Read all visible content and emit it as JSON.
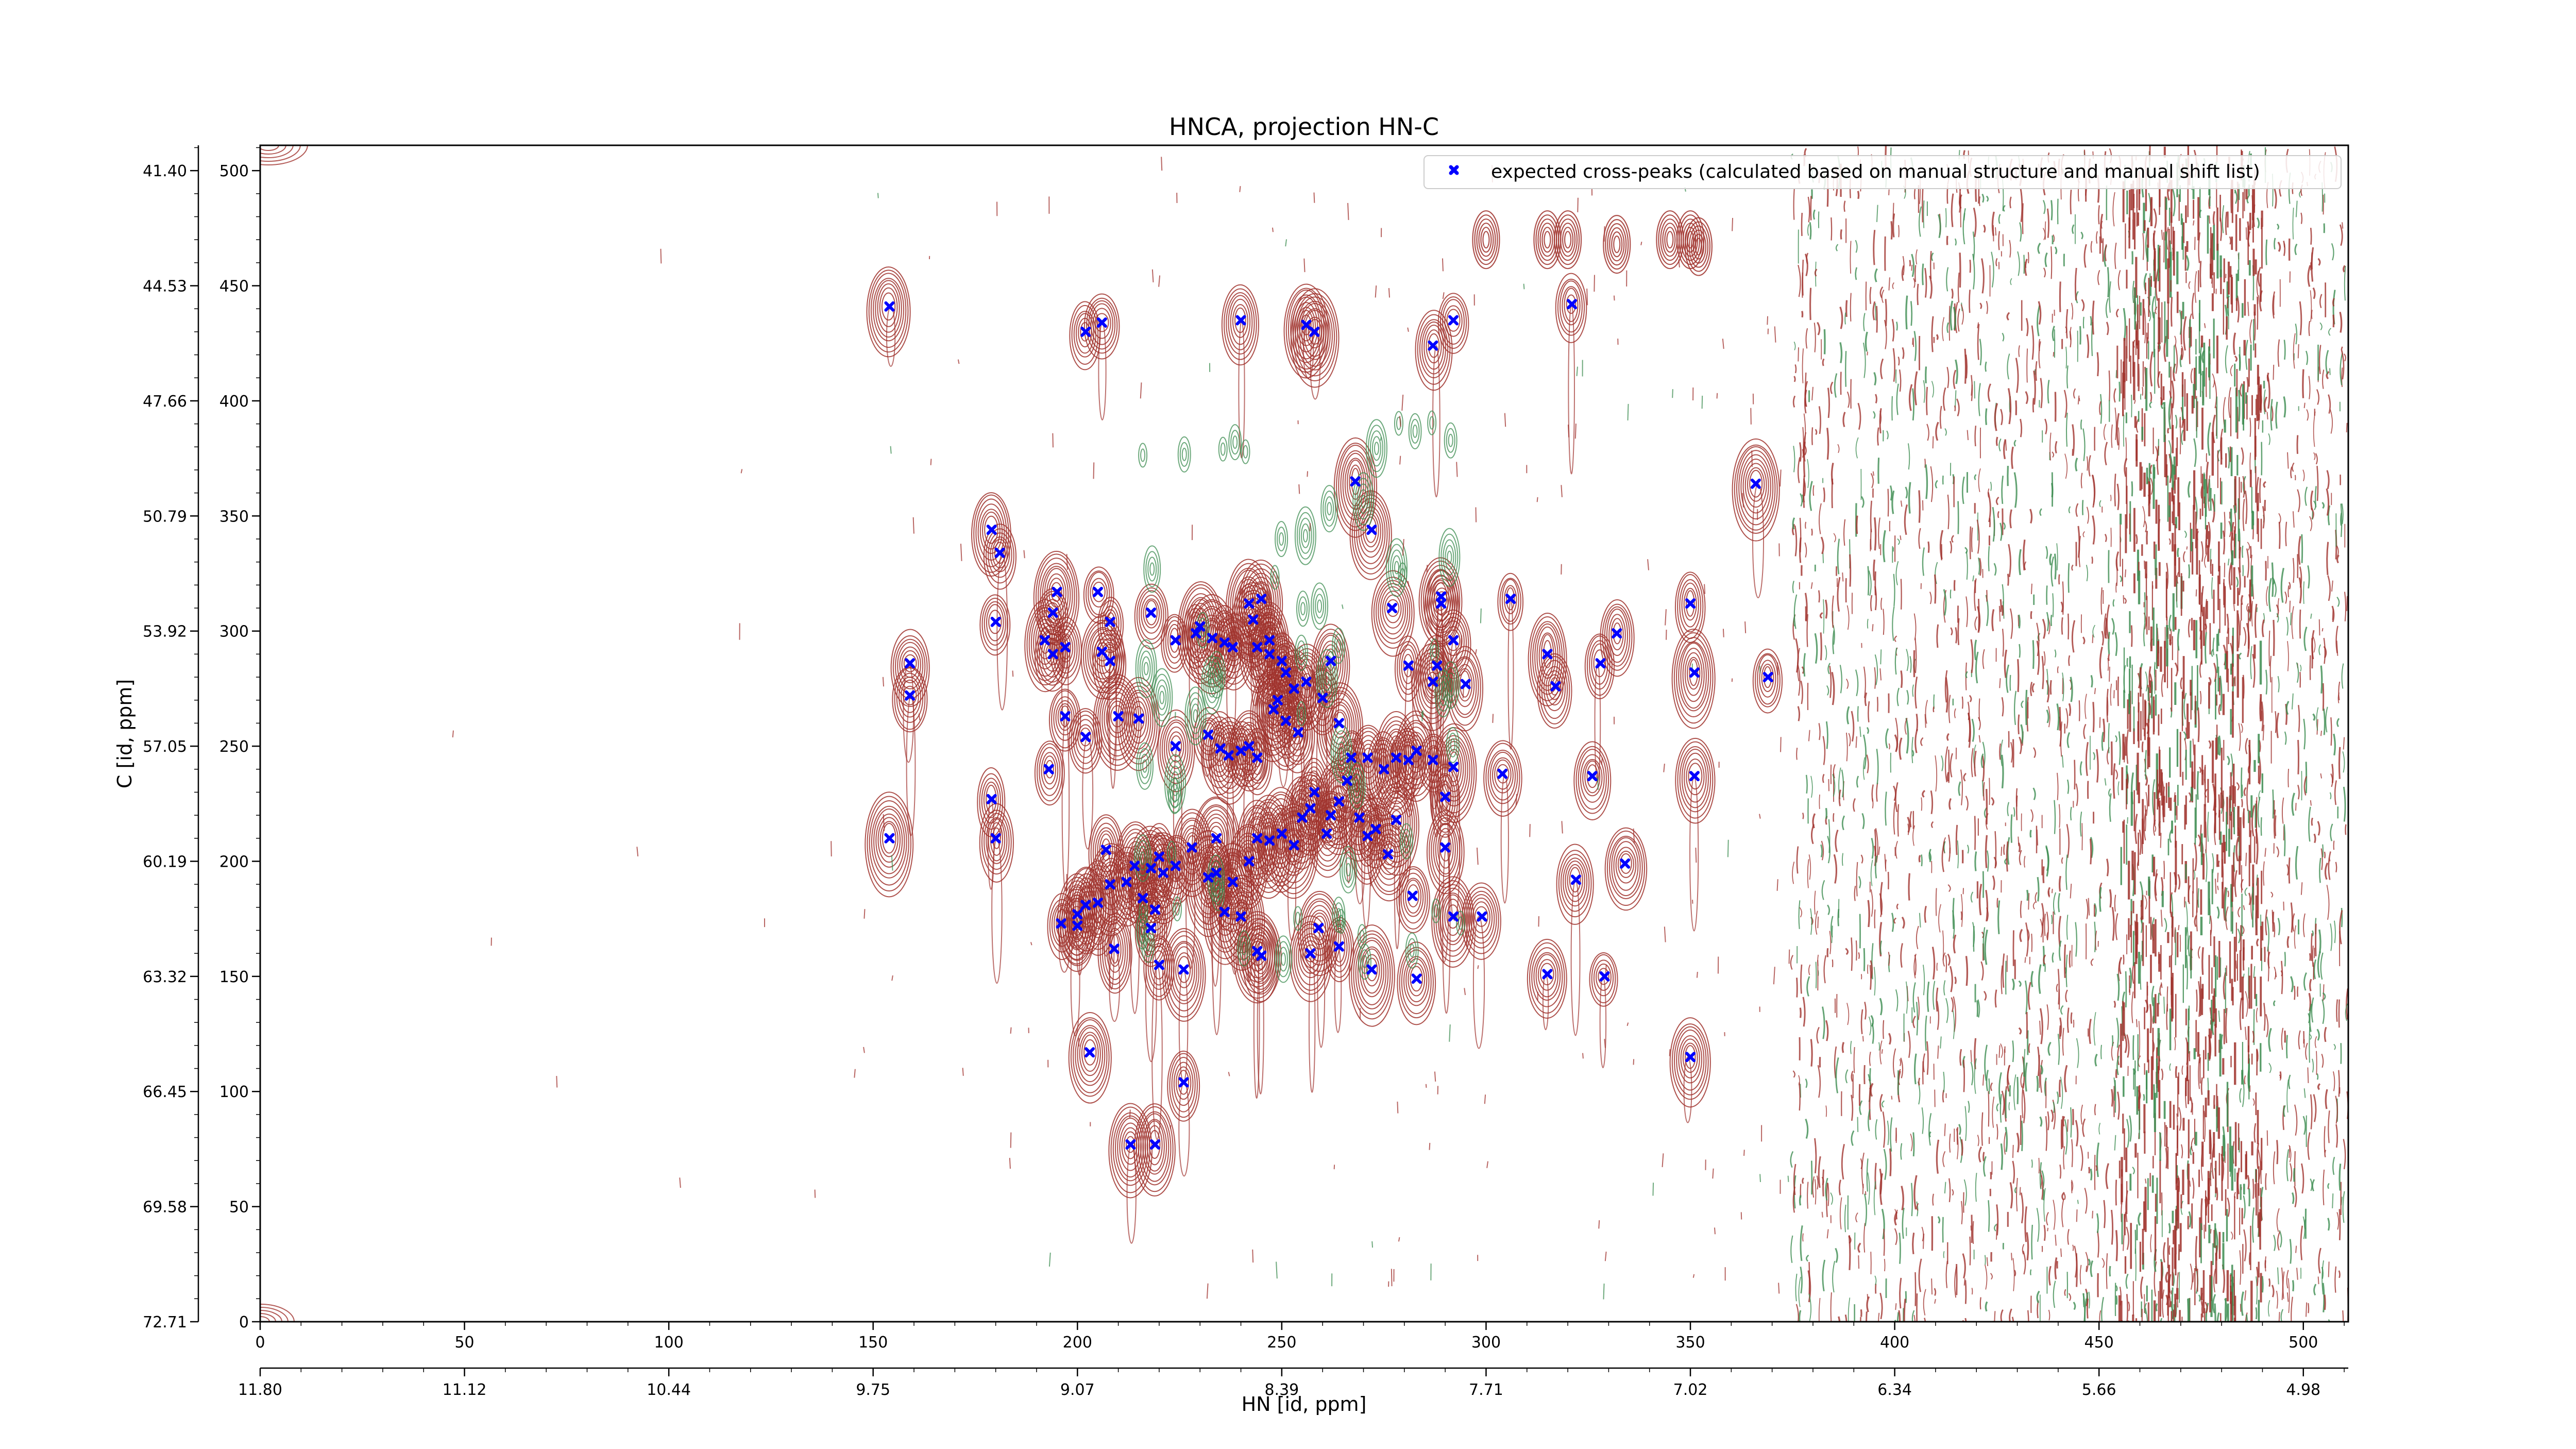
{
  "chart_data": {
    "type": "scatter",
    "title": "HNCA, projection HN-C",
    "xlabel": "HN [id, ppm]",
    "ylabel": "C [id, ppm]",
    "x_index_ticks": [
      "0",
      "50",
      "100",
      "150",
      "200",
      "250",
      "300",
      "350",
      "400",
      "450",
      "500"
    ],
    "x_ppm_ticks": [
      "11.80",
      "11.12",
      "10.44",
      "9.75",
      "9.07",
      "8.39",
      "7.71",
      "7.02",
      "6.34",
      "5.66",
      "4.98"
    ],
    "y_index_ticks": [
      "0",
      "50",
      "100",
      "150",
      "200",
      "250",
      "300",
      "350",
      "400",
      "450",
      "500"
    ],
    "y_ppm_ticks": [
      "72.71",
      "69.58",
      "66.45",
      "63.32",
      "60.19",
      "57.05",
      "53.92",
      "50.79",
      "47.66",
      "44.53",
      "41.40"
    ],
    "xlim": [
      0,
      511
    ],
    "ylim": [
      0,
      511
    ],
    "grid": false,
    "legend_position": "top-right",
    "colors": {
      "positive_contours": "#a0322d",
      "negative_contours": "#3c8c50",
      "peaks": "#0000ff"
    },
    "series": [
      {
        "name": "expected cross-peaks (calculated based on manual structure and manual shift list)",
        "marker": "X",
        "color": "#0000ff",
        "points": [
          [
            154,
            441
          ],
          [
            202,
            430
          ],
          [
            206,
            434
          ],
          [
            240,
            435
          ],
          [
            256,
            433
          ],
          [
            258,
            430
          ],
          [
            287,
            424
          ],
          [
            292,
            435
          ],
          [
            321,
            442
          ],
          [
            268,
            365
          ],
          [
            272,
            344
          ],
          [
            366,
            364
          ],
          [
            179,
            344
          ],
          [
            181,
            334
          ],
          [
            195,
            317
          ],
          [
            194,
            308
          ],
          [
            180,
            304
          ],
          [
            192,
            296
          ],
          [
            197,
            293
          ],
          [
            194,
            290
          ],
          [
            205,
            317
          ],
          [
            208,
            304
          ],
          [
            206,
            291
          ],
          [
            208,
            287
          ],
          [
            218,
            308
          ],
          [
            224,
            296
          ],
          [
            229,
            299
          ],
          [
            230,
            302
          ],
          [
            233,
            297
          ],
          [
            236,
            295
          ],
          [
            238,
            293
          ],
          [
            244,
            293
          ],
          [
            247,
            296
          ],
          [
            242,
            312
          ],
          [
            243,
            305
          ],
          [
            245,
            314
          ],
          [
            247,
            290
          ],
          [
            250,
            287
          ],
          [
            251,
            282
          ],
          [
            253,
            275
          ],
          [
            256,
            278
          ],
          [
            260,
            271
          ],
          [
            262,
            287
          ],
          [
            277,
            310
          ],
          [
            281,
            285
          ],
          [
            289,
            315
          ],
          [
            289,
            312
          ],
          [
            288,
            285
          ],
          [
            292,
            296
          ],
          [
            295,
            277
          ],
          [
            287,
            278
          ],
          [
            306,
            314
          ],
          [
            315,
            290
          ],
          [
            317,
            276
          ],
          [
            328,
            286
          ],
          [
            332,
            299
          ],
          [
            350,
            312
          ],
          [
            351,
            282
          ],
          [
            369,
            280
          ],
          [
            159,
            286
          ],
          [
            159,
            272
          ],
          [
            197,
            263
          ],
          [
            202,
            254
          ],
          [
            210,
            263
          ],
          [
            215,
            262
          ],
          [
            224,
            250
          ],
          [
            232,
            255
          ],
          [
            235,
            249
          ],
          [
            237,
            246
          ],
          [
            240,
            248
          ],
          [
            242,
            250
          ],
          [
            244,
            245
          ],
          [
            248,
            266
          ],
          [
            249,
            270
          ],
          [
            251,
            261
          ],
          [
            254,
            256
          ],
          [
            264,
            260
          ],
          [
            267,
            245
          ],
          [
            271,
            245
          ],
          [
            275,
            240
          ],
          [
            278,
            245
          ],
          [
            281,
            244
          ],
          [
            283,
            248
          ],
          [
            287,
            244
          ],
          [
            290,
            228
          ],
          [
            292,
            241
          ],
          [
            304,
            238
          ],
          [
            326,
            237
          ],
          [
            351,
            237
          ],
          [
            179,
            227
          ],
          [
            180,
            210
          ],
          [
            193,
            240
          ],
          [
            154,
            210
          ],
          [
            200,
            177
          ],
          [
            202,
            181
          ],
          [
            205,
            182
          ],
          [
            207,
            205
          ],
          [
            208,
            190
          ],
          [
            212,
            191
          ],
          [
            214,
            198
          ],
          [
            216,
            184
          ],
          [
            218,
            197
          ],
          [
            219,
            179
          ],
          [
            220,
            202
          ],
          [
            221,
            195
          ],
          [
            224,
            198
          ],
          [
            228,
            206
          ],
          [
            232,
            193
          ],
          [
            234,
            195
          ],
          [
            234,
            210
          ],
          [
            236,
            178
          ],
          [
            238,
            191
          ],
          [
            240,
            176
          ],
          [
            242,
            200
          ],
          [
            244,
            210
          ],
          [
            247,
            209
          ],
          [
            250,
            212
          ],
          [
            253,
            207
          ],
          [
            255,
            219
          ],
          [
            257,
            223
          ],
          [
            258,
            230
          ],
          [
            261,
            212
          ],
          [
            262,
            220
          ],
          [
            264,
            226
          ],
          [
            266,
            235
          ],
          [
            269,
            219
          ],
          [
            271,
            211
          ],
          [
            273,
            214
          ],
          [
            276,
            203
          ],
          [
            278,
            218
          ],
          [
            282,
            185
          ],
          [
            290,
            206
          ],
          [
            292,
            176
          ],
          [
            299,
            176
          ],
          [
            200,
            172
          ],
          [
            196,
            173
          ],
          [
            218,
            171
          ],
          [
            209,
            162
          ],
          [
            220,
            155
          ],
          [
            226,
            153
          ],
          [
            245,
            159
          ],
          [
            244,
            161
          ],
          [
            257,
            160
          ],
          [
            259,
            171
          ],
          [
            264,
            163
          ],
          [
            272,
            153
          ],
          [
            283,
            149
          ],
          [
            315,
            151
          ],
          [
            329,
            150
          ],
          [
            322,
            192
          ],
          [
            334,
            199
          ],
          [
            203,
            117
          ],
          [
            350,
            115
          ],
          [
            226,
            104
          ],
          [
            213,
            77
          ],
          [
            219,
            77
          ]
        ]
      }
    ]
  }
}
